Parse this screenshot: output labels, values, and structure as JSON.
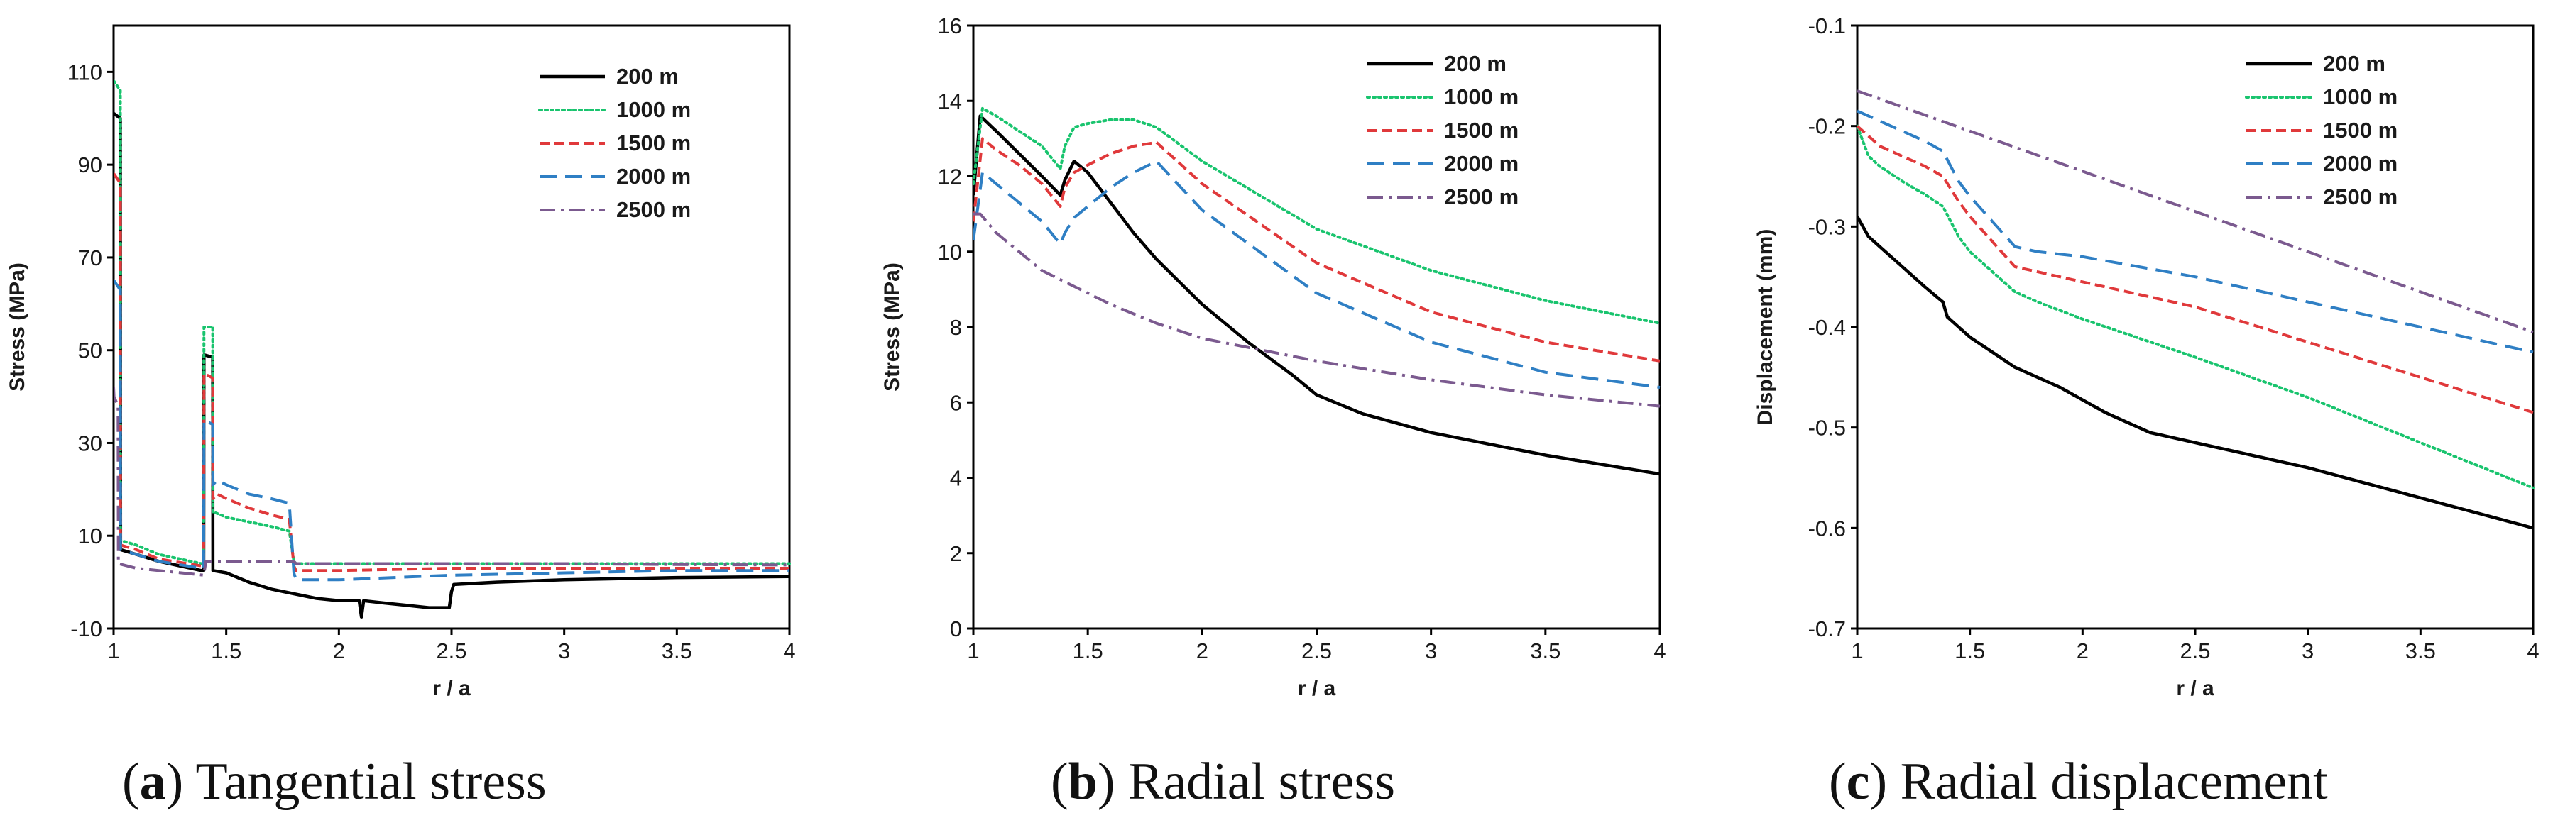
{
  "series_styles": [
    {
      "name": "200 m",
      "color": "#000000",
      "dash": "solid"
    },
    {
      "name": "1000 m",
      "color": "#19c46e",
      "dash": "dotted"
    },
    {
      "name": "1500 m",
      "color": "#e0393b",
      "dash": "dashed"
    },
    {
      "name": "2000 m",
      "color": "#2f7fc4",
      "dash": "long-dash"
    },
    {
      "name": "2500 m",
      "color": "#7b5a8f",
      "dash": "dash-dot"
    }
  ],
  "chart_data": [
    {
      "type": "line",
      "panel": "a",
      "caption_letter": "a",
      "caption_text": ") Tangential stress",
      "xlabel": "r / a",
      "ylabel": "Stress (MPa)",
      "xlim": [
        1,
        4
      ],
      "ylim": [
        -10,
        120
      ],
      "xticks": [
        1,
        1.5,
        2,
        2.5,
        3,
        3.5,
        4
      ],
      "xtick_labels": [
        "1",
        "1.5",
        "2",
        "2.5",
        "3",
        "3.5",
        "4"
      ],
      "yticks": [
        -10,
        10,
        30,
        50,
        70,
        90,
        110
      ],
      "ytick_labels": [
        "-10",
        "10",
        "30",
        "50",
        "70",
        "90",
        "110"
      ],
      "series": [
        {
          "name": "200 m",
          "x": [
            1,
            1.002,
            1.03,
            1.031,
            1.1,
            1.2,
            1.39,
            1.4,
            1.401,
            1.44,
            1.441,
            1.5,
            1.6,
            1.7,
            1.8,
            1.9,
            2.0,
            2.09,
            2.1,
            2.11,
            2.2,
            2.3,
            2.4,
            2.49,
            2.5,
            2.51,
            2.7,
            3.0,
            3.5,
            4.0
          ],
          "y": [
            101,
            101,
            100,
            7,
            6,
            4.5,
            2.5,
            2.5,
            49,
            48.5,
            2.5,
            2,
            0,
            -1.5,
            -2.5,
            -3.5,
            -4,
            -4,
            -7.5,
            -4,
            -4.5,
            -5,
            -5.5,
            -5.5,
            -2,
            -0.5,
            0,
            0.5,
            1,
            1.2
          ]
        },
        {
          "name": "1000 m",
          "x": [
            1,
            1.002,
            1.03,
            1.031,
            1.1,
            1.2,
            1.39,
            1.4,
            1.401,
            1.44,
            1.441,
            1.45,
            1.5,
            1.6,
            1.7,
            1.78,
            1.8,
            1.81,
            2.0,
            2.5,
            3.0,
            3.5,
            4.0
          ],
          "y": [
            108,
            108,
            106,
            9,
            8,
            6,
            4,
            4,
            55,
            55,
            15,
            15,
            14,
            13,
            12,
            11,
            4.5,
            4,
            4,
            4,
            4,
            4,
            4
          ]
        },
        {
          "name": "1500 m",
          "x": [
            1,
            1.002,
            1.03,
            1.031,
            1.1,
            1.2,
            1.39,
            1.4,
            1.401,
            1.44,
            1.441,
            1.46,
            1.5,
            1.6,
            1.7,
            1.78,
            1.8,
            1.81,
            2.0,
            2.5,
            3.0,
            3.5,
            4.0
          ],
          "y": [
            88,
            88,
            86,
            8,
            7,
            5,
            3.5,
            3.5,
            45,
            44,
            18,
            19,
            18,
            16,
            14.5,
            13.5,
            3.5,
            2.5,
            2.5,
            3,
            3,
            3,
            3
          ]
        },
        {
          "name": "2000 m",
          "x": [
            1,
            1.002,
            1.03,
            1.031,
            1.1,
            1.2,
            1.39,
            1.4,
            1.401,
            1.44,
            1.441,
            1.46,
            1.5,
            1.6,
            1.7,
            1.78,
            1.8,
            1.81,
            2.0,
            2.5,
            3.0,
            3.5,
            4.0
          ],
          "y": [
            65,
            65,
            63,
            7,
            6,
            4.5,
            3,
            3,
            35,
            34,
            21,
            22,
            21,
            19,
            18,
            17,
            2,
            0.5,
            0.5,
            1.5,
            2,
            2.5,
            2.5
          ]
        },
        {
          "name": "2500 m",
          "x": [
            1,
            1.002,
            1.02,
            1.021,
            1.1,
            1.3,
            1.4,
            1.41,
            1.5,
            1.8,
            1.81,
            2.0,
            2.5,
            3.0,
            3.5,
            4.0
          ],
          "y": [
            42,
            40,
            38,
            4,
            3,
            2,
            1.5,
            4.5,
            4.5,
            4.5,
            4,
            4,
            4,
            4,
            3.8,
            3.7
          ]
        }
      ]
    },
    {
      "type": "line",
      "panel": "b",
      "caption_letter": "b",
      "caption_text": ") Radial stress",
      "xlabel": "r / a",
      "ylabel": "Stress (MPa)",
      "xlim": [
        1,
        4
      ],
      "ylim": [
        0,
        16
      ],
      "xticks": [
        1,
        1.5,
        2,
        2.5,
        3,
        3.5,
        4
      ],
      "xtick_labels": [
        "1",
        "1.5",
        "2",
        "2.5",
        "3",
        "3.5",
        "4"
      ],
      "yticks": [
        0,
        2,
        4,
        6,
        8,
        10,
        12,
        14,
        16
      ],
      "ytick_labels": [
        "0",
        "2",
        "4",
        "6",
        "8",
        "10",
        "12",
        "14",
        "16"
      ],
      "series": [
        {
          "name": "200 m",
          "x": [
            1,
            1.03,
            1.1,
            1.2,
            1.3,
            1.38,
            1.4,
            1.44,
            1.5,
            1.6,
            1.7,
            1.8,
            2.0,
            2.2,
            2.4,
            2.5,
            2.7,
            3.0,
            3.5,
            4.0
          ],
          "y": [
            11.5,
            13.6,
            13.2,
            12.6,
            12.0,
            11.5,
            11.9,
            12.4,
            12.1,
            11.3,
            10.5,
            9.8,
            8.6,
            7.6,
            6.7,
            6.2,
            5.7,
            5.2,
            4.6,
            4.1
          ]
        },
        {
          "name": "1000 m",
          "x": [
            1,
            1.04,
            1.1,
            1.2,
            1.3,
            1.38,
            1.4,
            1.44,
            1.5,
            1.6,
            1.7,
            1.8,
            2.0,
            2.5,
            3.0,
            3.5,
            4.0
          ],
          "y": [
            11.8,
            13.8,
            13.6,
            13.2,
            12.8,
            12.2,
            12.8,
            13.3,
            13.4,
            13.5,
            13.5,
            13.3,
            12.4,
            10.6,
            9.5,
            8.7,
            8.1
          ]
        },
        {
          "name": "1500 m",
          "x": [
            1,
            1.04,
            1.1,
            1.2,
            1.3,
            1.38,
            1.4,
            1.44,
            1.5,
            1.6,
            1.7,
            1.8,
            2.0,
            2.5,
            3.0,
            3.5,
            4.0
          ],
          "y": [
            10.8,
            13.0,
            12.7,
            12.3,
            11.8,
            11.2,
            11.7,
            12.1,
            12.3,
            12.6,
            12.8,
            12.9,
            11.8,
            9.7,
            8.4,
            7.6,
            7.1
          ]
        },
        {
          "name": "2000 m",
          "x": [
            1,
            1.04,
            1.1,
            1.2,
            1.3,
            1.38,
            1.4,
            1.44,
            1.5,
            1.6,
            1.7,
            1.8,
            2.0,
            2.5,
            3.0,
            3.5,
            4.0
          ],
          "y": [
            10.3,
            12.1,
            11.8,
            11.3,
            10.8,
            10.2,
            10.5,
            10.9,
            11.2,
            11.7,
            12.1,
            12.4,
            11.1,
            8.9,
            7.6,
            6.8,
            6.4
          ]
        },
        {
          "name": "2500 m",
          "x": [
            1,
            1.03,
            1.1,
            1.2,
            1.3,
            1.4,
            1.5,
            1.6,
            1.8,
            2.0,
            2.5,
            3.0,
            3.5,
            4.0
          ],
          "y": [
            11.0,
            11.0,
            10.5,
            10.0,
            9.5,
            9.2,
            8.9,
            8.6,
            8.1,
            7.7,
            7.1,
            6.6,
            6.2,
            5.9
          ]
        }
      ]
    },
    {
      "type": "line",
      "panel": "c",
      "caption_letter": "c",
      "caption_text": ") Radial displacement",
      "xlabel": "r / a",
      "ylabel": "Displacement (mm)",
      "xlim": [
        1,
        4
      ],
      "ylim": [
        -0.7,
        -0.1
      ],
      "xticks": [
        1,
        1.5,
        2,
        2.5,
        3,
        3.5,
        4
      ],
      "xtick_labels": [
        "1",
        "1.5",
        "2",
        "2.5",
        "3",
        "3.5",
        "4"
      ],
      "yticks": [
        -0.7,
        -0.6,
        -0.5,
        -0.4,
        -0.3,
        -0.2,
        -0.1
      ],
      "ytick_labels": [
        "-0.7",
        "-0.6",
        "-0.5",
        "-0.4",
        "-0.3",
        "-0.2",
        "-0.1"
      ],
      "series": [
        {
          "name": "200 m",
          "x": [
            1,
            1.05,
            1.1,
            1.2,
            1.3,
            1.38,
            1.4,
            1.45,
            1.5,
            1.7,
            1.9,
            2.1,
            2.3,
            2.5,
            2.7,
            3.0,
            3.5,
            4.0
          ],
          "y": [
            -0.29,
            -0.31,
            -0.32,
            -0.34,
            -0.36,
            -0.375,
            -0.39,
            -0.4,
            -0.41,
            -0.44,
            -0.46,
            -0.485,
            -0.505,
            -0.515,
            -0.525,
            -0.54,
            -0.57,
            -0.6
          ]
        },
        {
          "name": "1000 m",
          "x": [
            1,
            1.05,
            1.1,
            1.2,
            1.3,
            1.38,
            1.45,
            1.5,
            1.6,
            1.7,
            1.8,
            2.0,
            2.5,
            3.0,
            3.5,
            4.0
          ],
          "y": [
            -0.2,
            -0.23,
            -0.24,
            -0.255,
            -0.268,
            -0.28,
            -0.31,
            -0.325,
            -0.345,
            -0.365,
            -0.375,
            -0.392,
            -0.43,
            -0.47,
            -0.515,
            -0.56
          ]
        },
        {
          "name": "1500 m",
          "x": [
            1,
            1.05,
            1.1,
            1.2,
            1.3,
            1.38,
            1.45,
            1.5,
            1.6,
            1.7,
            1.8,
            2.0,
            2.5,
            3.0,
            3.5,
            4.0
          ],
          "y": [
            -0.2,
            -0.21,
            -0.22,
            -0.23,
            -0.24,
            -0.25,
            -0.275,
            -0.29,
            -0.315,
            -0.34,
            -0.345,
            -0.355,
            -0.38,
            -0.415,
            -0.45,
            -0.485
          ]
        },
        {
          "name": "2000 m",
          "x": [
            1,
            1.05,
            1.1,
            1.2,
            1.3,
            1.38,
            1.45,
            1.5,
            1.6,
            1.7,
            1.8,
            2.0,
            2.5,
            3.0,
            3.5,
            4.0
          ],
          "y": [
            -0.185,
            -0.19,
            -0.195,
            -0.205,
            -0.215,
            -0.225,
            -0.255,
            -0.27,
            -0.295,
            -0.32,
            -0.325,
            -0.33,
            -0.35,
            -0.375,
            -0.4,
            -0.425
          ]
        },
        {
          "name": "2500 m",
          "x": [
            1,
            1.5,
            2.0,
            2.5,
            3.0,
            3.5,
            4.0
          ],
          "y": [
            -0.165,
            -0.205,
            -0.245,
            -0.285,
            -0.325,
            -0.365,
            -0.405
          ]
        }
      ]
    }
  ]
}
